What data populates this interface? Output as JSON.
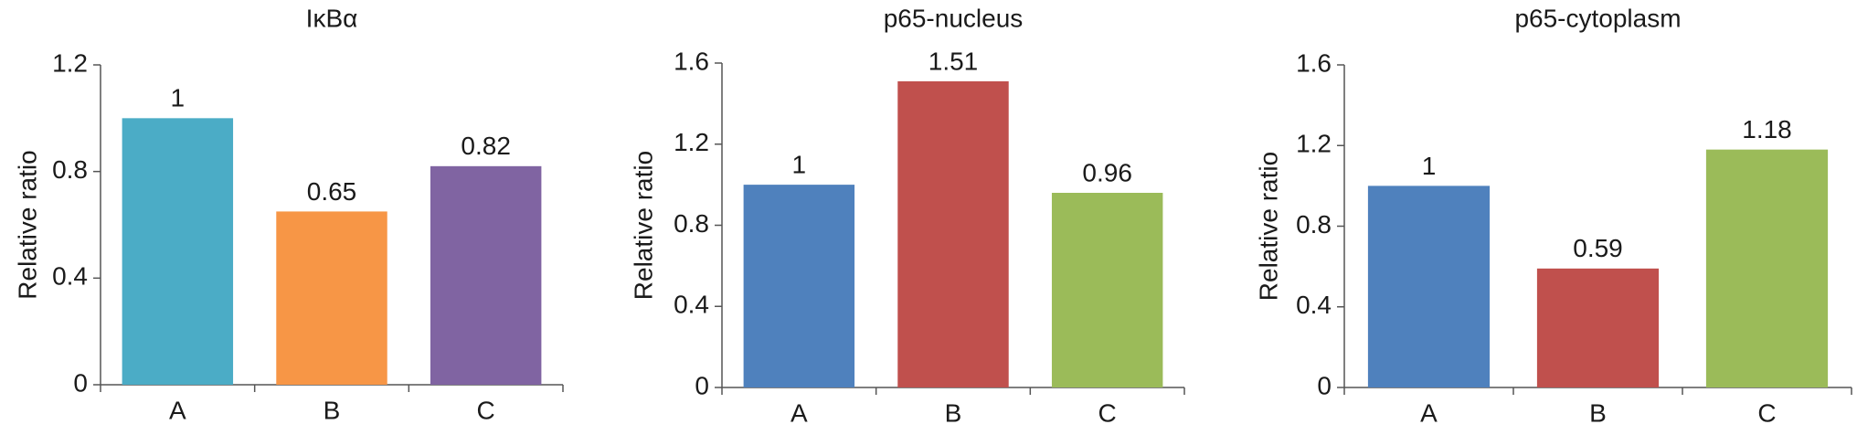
{
  "chart_data": [
    {
      "type": "bar",
      "title": "IκBα",
      "ylabel": "Relative ratio",
      "categories": [
        "A",
        "B",
        "C"
      ],
      "values": [
        1,
        0.65,
        0.82
      ],
      "colors": [
        "#4bacc6",
        "#f79646",
        "#8064a2"
      ],
      "ylim": [
        0,
        1.2
      ],
      "yticks": [
        0,
        0.4,
        0.8,
        1.2
      ]
    },
    {
      "type": "bar",
      "title": "p65-nucleus",
      "ylabel": "Relative ratio",
      "categories": [
        "A",
        "B",
        "C"
      ],
      "values": [
        1,
        1.51,
        0.96
      ],
      "colors": [
        "#4f81bd",
        "#c0504d",
        "#9bbb59"
      ],
      "ylim": [
        0,
        1.6
      ],
      "yticks": [
        0,
        0.4,
        0.8,
        1.2,
        1.6
      ]
    },
    {
      "type": "bar",
      "title": "p65-cytoplasm",
      "ylabel": "Relative ratio",
      "categories": [
        "A",
        "B",
        "C"
      ],
      "values": [
        1,
        0.59,
        1.18
      ],
      "colors": [
        "#4f81bd",
        "#c0504d",
        "#9bbb59"
      ],
      "ylim": [
        0,
        1.6
      ],
      "yticks": [
        0,
        0.4,
        0.8,
        1.2,
        1.6
      ]
    }
  ]
}
